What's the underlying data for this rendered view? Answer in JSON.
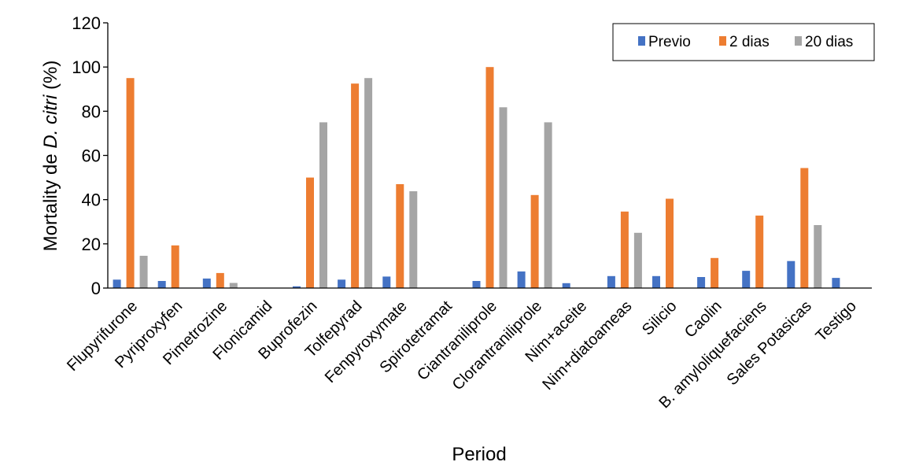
{
  "chart_data": {
    "type": "bar",
    "title": "",
    "xlabel": "Period",
    "ylabel_prefix": "Mortality de ",
    "ylabel_species": "D. citri",
    "ylabel_suffix": " (%)",
    "ylim": [
      0,
      120
    ],
    "yticks": [
      0,
      20,
      40,
      60,
      80,
      100,
      120
    ],
    "grid": false,
    "legend_position": "top-right",
    "categories": [
      "Flupyrifurone",
      "Pyriproxyfen",
      "Pimetrozine",
      "Flonicamid",
      "Buprofezin",
      "Tolfepyrad",
      "Fenpyroxymate",
      "Spirotetramat",
      "Ciantraniliprole",
      "Clorantraniliprole",
      "Nim+aceite",
      "Nim+diatoameas",
      "Silicio",
      "Caolin",
      "B. amyloliquefaciens",
      "Sales Potasicas",
      "Testigo"
    ],
    "series": [
      {
        "name": "Previo",
        "color": "#4472C4",
        "values": [
          3.8,
          3.2,
          4.3,
          0,
          0.8,
          3.8,
          5.2,
          0,
          3.2,
          7.5,
          2.2,
          5.4,
          5.4,
          5.0,
          7.8,
          12.2,
          4.6
        ]
      },
      {
        "name": "2 dias",
        "color": "#ED7D31",
        "values": [
          95,
          19.3,
          6.8,
          0,
          50,
          92.5,
          47,
          0,
          100,
          42.1,
          0,
          34.6,
          40.4,
          13.6,
          32.8,
          54.3,
          0
        ]
      },
      {
        "name": "20 dias",
        "color": "#A5A5A5",
        "values": [
          14.6,
          0,
          2.3,
          0,
          75,
          95,
          43.8,
          0,
          81.8,
          75,
          0,
          25,
          0,
          0,
          0,
          28.5,
          0
        ]
      }
    ]
  }
}
